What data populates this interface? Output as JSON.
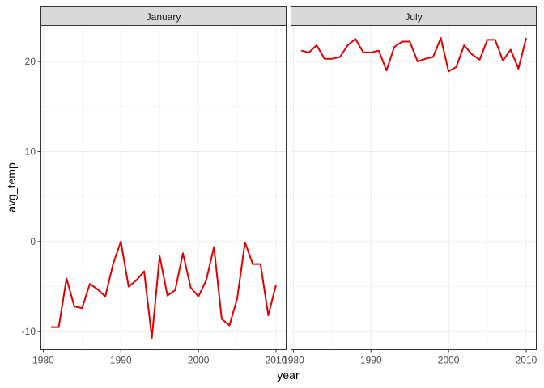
{
  "chart_data": {
    "type": "line",
    "xlabel": "year",
    "ylabel": "avg_temp",
    "xlim": [
      1980,
      2010
    ],
    "ylim": [
      -12,
      24
    ],
    "x_ticks": [
      1980,
      1990,
      2000,
      2010
    ],
    "x_tick_labels": [
      "1980",
      "1990",
      "2000",
      "2010"
    ],
    "y_ticks": [
      -10,
      0,
      10,
      20
    ],
    "y_tick_labels": [
      "-10",
      "0",
      "10",
      "20"
    ],
    "grid": true,
    "line_color": "#e00000",
    "facets": [
      {
        "label": "January",
        "x": [
          1981,
          1982,
          1983,
          1984,
          1985,
          1986,
          1987,
          1988,
          1989,
          1990,
          1991,
          1992,
          1993,
          1994,
          1995,
          1996,
          1997,
          1998,
          1999,
          2000,
          2001,
          2002,
          2003,
          2004,
          2005,
          2006,
          2007,
          2008,
          2009,
          2010
        ],
        "values": [
          -9.5,
          -9.5,
          -4.1,
          -7.2,
          -7.4,
          -4.7,
          -5.3,
          -6.1,
          -2.5,
          0.0,
          -5.0,
          -4.3,
          -3.3,
          -10.7,
          -1.6,
          -6.0,
          -5.4,
          -1.3,
          -5.1,
          -6.1,
          -4.3,
          -0.6,
          -8.6,
          -9.3,
          -6.3,
          -0.1,
          -2.5,
          -2.5,
          -8.2,
          -4.8
        ]
      },
      {
        "label": "July",
        "x": [
          1981,
          1982,
          1983,
          1984,
          1985,
          1986,
          1987,
          1988,
          1989,
          1990,
          1991,
          1992,
          1993,
          1994,
          1995,
          1996,
          1997,
          1998,
          1999,
          2000,
          2001,
          2002,
          2003,
          2004,
          2005,
          2006,
          2007,
          2008,
          2009,
          2010
        ],
        "values": [
          21.2,
          21.0,
          21.8,
          20.3,
          20.3,
          20.5,
          21.8,
          22.5,
          21.0,
          21.0,
          21.2,
          19.0,
          21.6,
          22.2,
          22.2,
          20.0,
          20.3,
          20.5,
          22.6,
          18.9,
          19.4,
          21.8,
          20.8,
          20.2,
          22.4,
          22.4,
          20.1,
          21.3,
          19.2,
          22.6
        ]
      }
    ]
  }
}
